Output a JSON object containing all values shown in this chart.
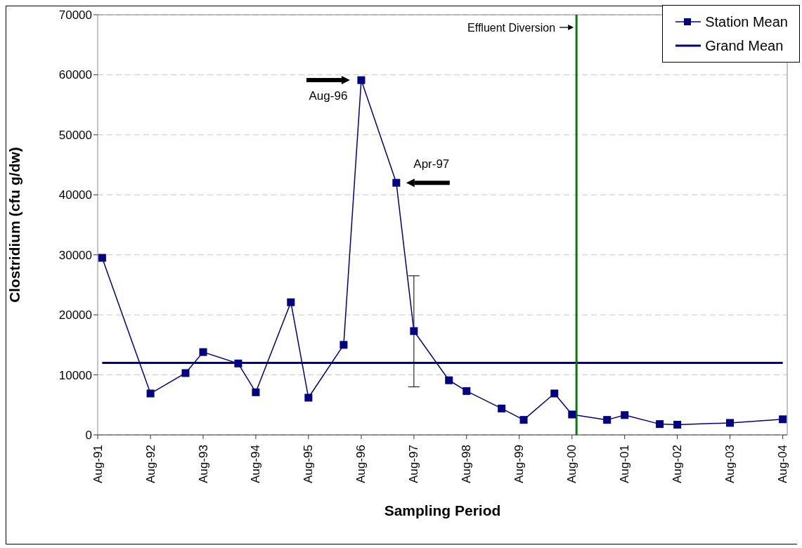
{
  "chart_data": {
    "type": "line",
    "xlabel": "Sampling Period",
    "ylabel": "Clostridium (cfu g/dw)",
    "xlim": [
      "1991-08",
      "2004-09"
    ],
    "ylim": [
      0,
      70000
    ],
    "xticks": [
      {
        "value": "1991-08",
        "label": "Aug-91"
      },
      {
        "value": "1992-08",
        "label": "Aug-92"
      },
      {
        "value": "1993-08",
        "label": "Aug-93"
      },
      {
        "value": "1994-08",
        "label": "Aug-94"
      },
      {
        "value": "1995-08",
        "label": "Aug-95"
      },
      {
        "value": "1996-08",
        "label": "Aug-96"
      },
      {
        "value": "1997-08",
        "label": "Aug-97"
      },
      {
        "value": "1998-08",
        "label": "Aug-98"
      },
      {
        "value": "1999-08",
        "label": "Aug-99"
      },
      {
        "value": "2000-08",
        "label": "Aug-00"
      },
      {
        "value": "2001-08",
        "label": "Aug-01"
      },
      {
        "value": "2002-08",
        "label": "Aug-02"
      },
      {
        "value": "2003-08",
        "label": "Aug-03"
      },
      {
        "value": "2004-08",
        "label": "Aug-04"
      }
    ],
    "yticks": [
      0,
      10000,
      20000,
      30000,
      40000,
      50000,
      60000,
      70000
    ],
    "grid": "y",
    "legend": "top right",
    "series": [
      {
        "name": "Station Mean",
        "color": "#000080",
        "marker": "square",
        "x": [
          "1991-09",
          "1992-08",
          "1993-04",
          "1993-08",
          "1994-04",
          "1994-08",
          "1995-04",
          "1995-08",
          "1996-04",
          "1996-08",
          "1997-04",
          "1997-08",
          "1998-04",
          "1998-08",
          "1999-04",
          "1999-09",
          "2000-04",
          "2000-08",
          "2001-04",
          "2001-08",
          "2002-04",
          "2002-08",
          "2003-08",
          "2004-08"
        ],
        "values": [
          29500,
          6900,
          10300,
          13800,
          11900,
          7100,
          22100,
          6200,
          15000,
          59100,
          42000,
          17300,
          9100,
          7300,
          4400,
          2500,
          6900,
          3400,
          2500,
          3300,
          1800,
          1700,
          2000,
          2600
        ],
        "errors": [
          null,
          null,
          null,
          null,
          null,
          null,
          null,
          null,
          null,
          null,
          null,
          [
            8000,
            26500
          ],
          null,
          null,
          null,
          null,
          null,
          null,
          null,
          null,
          null,
          null,
          null,
          null
        ]
      },
      {
        "name": "Grand Mean",
        "color": "#000080",
        "marker": "none",
        "x": [
          "1991-09",
          "2004-08"
        ],
        "values": [
          12000,
          12000
        ]
      }
    ],
    "ref_lines": [
      {
        "axis": "x",
        "value": "2000-09",
        "label": "Effluent Diversion",
        "color": "#008000"
      }
    ],
    "annotations": [
      {
        "text": "Aug-96",
        "x": "1996-08",
        "y": 59100
      },
      {
        "text": "Apr-97",
        "x": "1997-04",
        "y": 42000
      }
    ]
  }
}
